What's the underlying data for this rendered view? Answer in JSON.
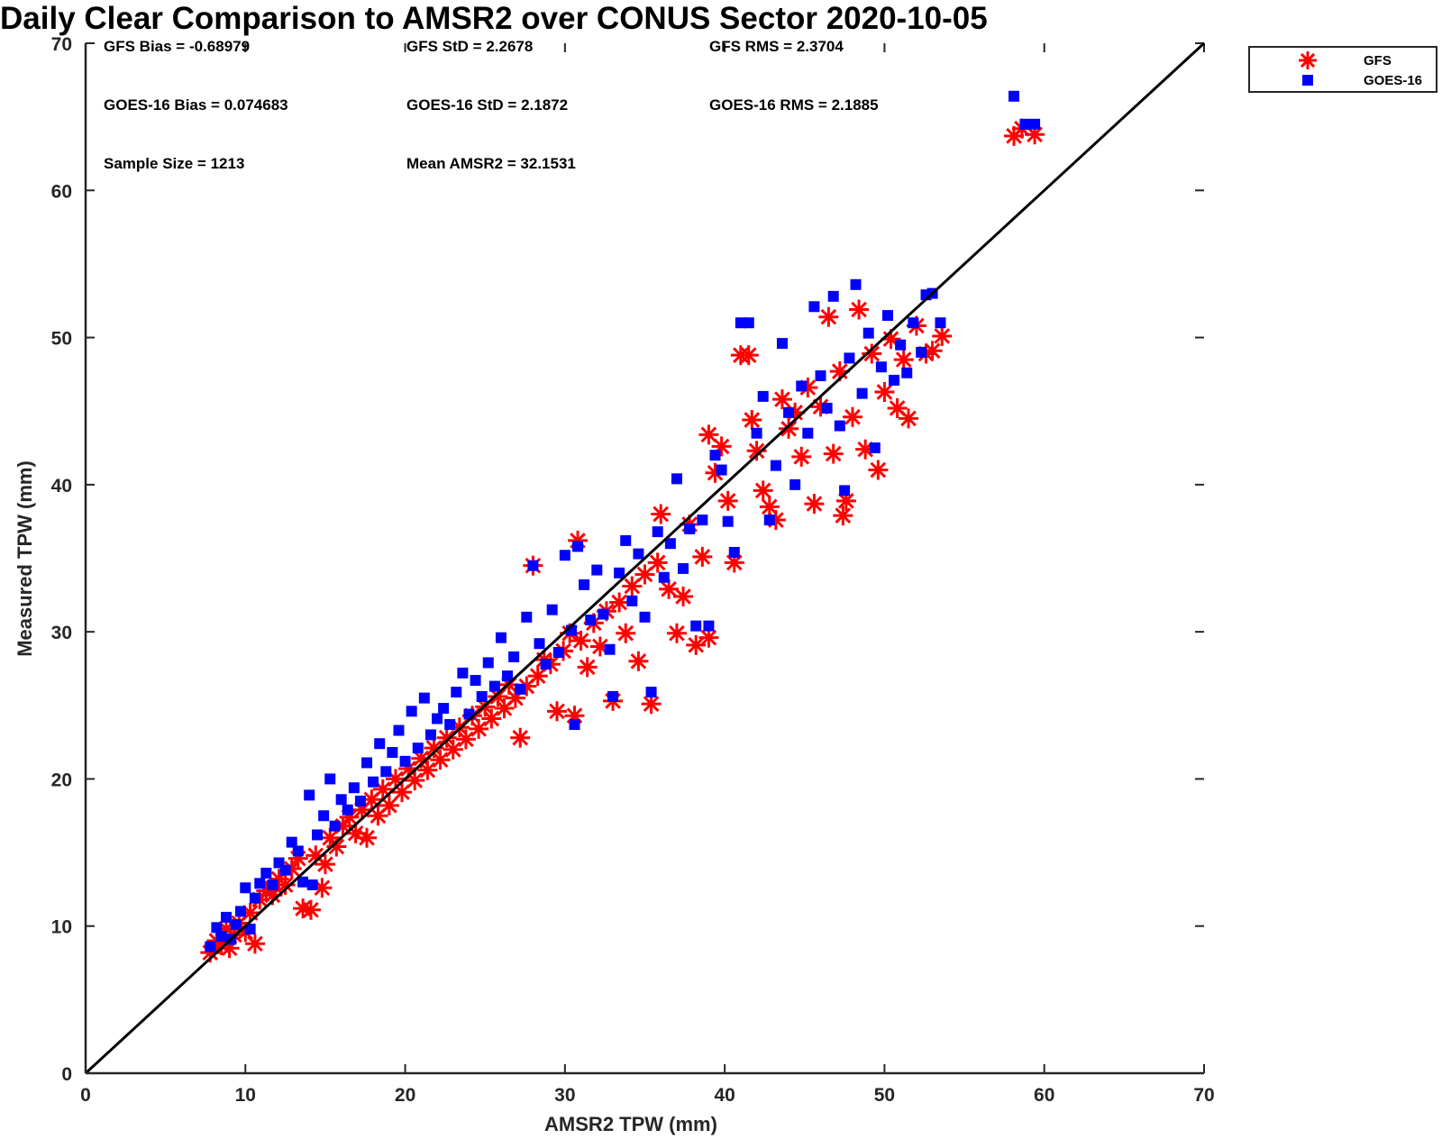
{
  "chart_data": {
    "type": "scatter",
    "title": "Daily Clear Comparison to AMSR2 over CONUS Sector 2020-10-05",
    "xlabel": "AMSR2 TPW (mm)",
    "ylabel": "Measured TPW (mm)",
    "xlim": [
      0,
      70
    ],
    "ylim": [
      0,
      70
    ],
    "xticks": [
      "0",
      "10",
      "20",
      "30",
      "40",
      "50",
      "60",
      "70"
    ],
    "yticks": [
      "0",
      "10",
      "20",
      "30",
      "40",
      "50",
      "60",
      "70"
    ],
    "grid": false,
    "legend_position": "outside-top-right",
    "reference_line": {
      "x": [
        0,
        70
      ],
      "y": [
        0,
        70
      ],
      "color": "#000000"
    },
    "stats": [
      [
        "GFS Bias = -0.68979",
        "GFS StD = 2.2678",
        "GFS RMS = 2.3704"
      ],
      [
        "GOES-16 Bias = 0.074683",
        "GOES-16 StD = 2.1872",
        "GOES-16 RMS = 2.1885"
      ],
      [
        "Sample Size = 1213",
        "Mean AMSR2 = 32.1531",
        ""
      ]
    ],
    "series": [
      {
        "name": "GFS",
        "marker": "asterisk",
        "color": "#ff0000",
        "points": [
          [
            7.8,
            8.2
          ],
          [
            8.2,
            9.0
          ],
          [
            8.5,
            8.7
          ],
          [
            8.8,
            9.8
          ],
          [
            9.0,
            8.5
          ],
          [
            9.3,
            9.4
          ],
          [
            9.6,
            10.2
          ],
          [
            10.0,
            9.6
          ],
          [
            10.3,
            10.9
          ],
          [
            10.6,
            8.8
          ],
          [
            10.9,
            11.8
          ],
          [
            11.3,
            12.4
          ],
          [
            11.7,
            12.1
          ],
          [
            12.1,
            13.2
          ],
          [
            12.5,
            12.8
          ],
          [
            12.9,
            13.9
          ],
          [
            13.3,
            14.6
          ],
          [
            13.6,
            11.2
          ],
          [
            14.1,
            11.1
          ],
          [
            14.4,
            14.8
          ],
          [
            14.8,
            12.6
          ],
          [
            15.0,
            14.2
          ],
          [
            15.3,
            16.0
          ],
          [
            15.7,
            15.4
          ],
          [
            16.1,
            16.8
          ],
          [
            16.5,
            17.4
          ],
          [
            16.9,
            16.3
          ],
          [
            17.3,
            17.9
          ],
          [
            17.6,
            16.0
          ],
          [
            17.9,
            18.6
          ],
          [
            18.3,
            17.5
          ],
          [
            18.6,
            19.3
          ],
          [
            19.0,
            18.2
          ],
          [
            19.4,
            20.0
          ],
          [
            19.8,
            19.1
          ],
          [
            20.2,
            20.7
          ],
          [
            20.6,
            19.9
          ],
          [
            21.0,
            21.4
          ],
          [
            21.4,
            20.6
          ],
          [
            21.8,
            22.1
          ],
          [
            22.2,
            21.3
          ],
          [
            22.6,
            22.8
          ],
          [
            23.0,
            22.0
          ],
          [
            23.4,
            23.5
          ],
          [
            23.8,
            22.7
          ],
          [
            24.2,
            24.3
          ],
          [
            24.6,
            23.4
          ],
          [
            25.0,
            24.9
          ],
          [
            25.4,
            24.1
          ],
          [
            25.8,
            25.6
          ],
          [
            26.2,
            24.8
          ],
          [
            26.5,
            26.4
          ],
          [
            26.9,
            25.5
          ],
          [
            27.2,
            22.8
          ],
          [
            27.6,
            26.3
          ],
          [
            28.0,
            34.5
          ],
          [
            28.3,
            27.0
          ],
          [
            28.7,
            28.1
          ],
          [
            29.1,
            27.8
          ],
          [
            29.5,
            24.6
          ],
          [
            29.9,
            28.7
          ],
          [
            30.3,
            29.9
          ],
          [
            30.6,
            24.3
          ],
          [
            30.8,
            36.2
          ],
          [
            31.0,
            29.4
          ],
          [
            31.4,
            27.6
          ],
          [
            31.8,
            30.6
          ],
          [
            32.2,
            29.0
          ],
          [
            32.6,
            31.4
          ],
          [
            33.0,
            25.3
          ],
          [
            33.4,
            32.0
          ],
          [
            33.8,
            29.9
          ],
          [
            34.2,
            33.1
          ],
          [
            34.6,
            28.0
          ],
          [
            35.0,
            33.9
          ],
          [
            35.4,
            25.1
          ],
          [
            35.8,
            34.7
          ],
          [
            36.0,
            38.0
          ],
          [
            36.5,
            32.9
          ],
          [
            37.0,
            29.9
          ],
          [
            37.4,
            32.4
          ],
          [
            37.8,
            37.3
          ],
          [
            38.2,
            29.1
          ],
          [
            38.6,
            35.1
          ],
          [
            39.0,
            29.6
          ],
          [
            39.0,
            43.4
          ],
          [
            39.4,
            40.8
          ],
          [
            39.8,
            42.6
          ],
          [
            40.2,
            38.9
          ],
          [
            40.6,
            34.7
          ],
          [
            41.0,
            48.8
          ],
          [
            41.5,
            48.8
          ],
          [
            41.7,
            44.4
          ],
          [
            42.0,
            42.3
          ],
          [
            42.4,
            39.6
          ],
          [
            42.8,
            38.5
          ],
          [
            43.2,
            37.6
          ],
          [
            43.6,
            45.8
          ],
          [
            44.0,
            43.8
          ],
          [
            44.4,
            44.9
          ],
          [
            44.8,
            41.9
          ],
          [
            45.2,
            46.6
          ],
          [
            45.6,
            38.7
          ],
          [
            46.0,
            45.3
          ],
          [
            46.5,
            51.4
          ],
          [
            46.8,
            42.1
          ],
          [
            47.2,
            47.7
          ],
          [
            47.4,
            37.9
          ],
          [
            47.6,
            38.9
          ],
          [
            48.0,
            44.6
          ],
          [
            48.4,
            51.9
          ],
          [
            48.8,
            42.4
          ],
          [
            49.2,
            48.9
          ],
          [
            49.6,
            41.0
          ],
          [
            50.0,
            46.3
          ],
          [
            50.4,
            49.9
          ],
          [
            50.8,
            45.2
          ],
          [
            51.2,
            48.5
          ],
          [
            51.5,
            44.5
          ],
          [
            52.0,
            50.8
          ],
          [
            52.6,
            48.9
          ],
          [
            53.0,
            49.1
          ],
          [
            53.6,
            50.1
          ],
          [
            58.1,
            63.7
          ],
          [
            58.6,
            64.2
          ],
          [
            59.4,
            63.8
          ]
        ]
      },
      {
        "name": "GOES-16",
        "marker": "square",
        "color": "#0000ff",
        "points": [
          [
            7.8,
            8.6
          ],
          [
            8.2,
            9.9
          ],
          [
            8.5,
            9.3
          ],
          [
            8.8,
            10.6
          ],
          [
            9.1,
            9.1
          ],
          [
            9.4,
            10.1
          ],
          [
            9.7,
            11.0
          ],
          [
            10.0,
            12.6
          ],
          [
            10.3,
            9.8
          ],
          [
            10.6,
            11.9
          ],
          [
            10.9,
            12.9
          ],
          [
            11.3,
            13.6
          ],
          [
            11.7,
            12.8
          ],
          [
            12.1,
            14.3
          ],
          [
            12.5,
            13.8
          ],
          [
            12.9,
            15.7
          ],
          [
            13.3,
            15.1
          ],
          [
            13.6,
            13.0
          ],
          [
            14.0,
            18.9
          ],
          [
            14.2,
            12.8
          ],
          [
            14.5,
            16.2
          ],
          [
            14.9,
            17.5
          ],
          [
            15.3,
            20.0
          ],
          [
            15.6,
            16.8
          ],
          [
            16.0,
            18.6
          ],
          [
            16.4,
            17.9
          ],
          [
            16.8,
            19.4
          ],
          [
            17.2,
            18.5
          ],
          [
            17.6,
            21.1
          ],
          [
            18.0,
            19.8
          ],
          [
            18.4,
            22.4
          ],
          [
            18.8,
            20.5
          ],
          [
            19.2,
            21.8
          ],
          [
            19.6,
            23.3
          ],
          [
            20.0,
            21.2
          ],
          [
            20.4,
            24.6
          ],
          [
            20.8,
            22.1
          ],
          [
            21.2,
            25.5
          ],
          [
            21.6,
            23.0
          ],
          [
            22.0,
            24.1
          ],
          [
            22.4,
            24.8
          ],
          [
            22.8,
            23.7
          ],
          [
            23.2,
            25.9
          ],
          [
            23.6,
            27.2
          ],
          [
            24.0,
            24.4
          ],
          [
            24.4,
            26.7
          ],
          [
            24.8,
            25.6
          ],
          [
            25.2,
            27.9
          ],
          [
            25.6,
            26.3
          ],
          [
            26.0,
            29.6
          ],
          [
            26.4,
            27.0
          ],
          [
            26.8,
            28.3
          ],
          [
            27.2,
            26.1
          ],
          [
            27.6,
            31.0
          ],
          [
            28.0,
            34.5
          ],
          [
            28.4,
            29.2
          ],
          [
            28.8,
            27.8
          ],
          [
            29.2,
            31.5
          ],
          [
            29.6,
            28.6
          ],
          [
            30.0,
            35.2
          ],
          [
            30.4,
            30.1
          ],
          [
            30.6,
            23.7
          ],
          [
            30.8,
            35.8
          ],
          [
            31.2,
            33.2
          ],
          [
            31.6,
            30.8
          ],
          [
            32.0,
            34.2
          ],
          [
            32.4,
            31.2
          ],
          [
            32.8,
            28.8
          ],
          [
            33.0,
            25.6
          ],
          [
            33.4,
            34.0
          ],
          [
            33.8,
            36.2
          ],
          [
            34.2,
            32.1
          ],
          [
            34.6,
            35.3
          ],
          [
            35.0,
            31.0
          ],
          [
            35.4,
            25.9
          ],
          [
            35.8,
            36.8
          ],
          [
            36.2,
            33.7
          ],
          [
            36.6,
            36.0
          ],
          [
            37.0,
            40.4
          ],
          [
            37.4,
            34.3
          ],
          [
            37.8,
            37.0
          ],
          [
            38.2,
            30.4
          ],
          [
            38.6,
            37.6
          ],
          [
            39.0,
            30.4
          ],
          [
            39.4,
            42.0
          ],
          [
            39.8,
            41.0
          ],
          [
            40.2,
            37.5
          ],
          [
            40.6,
            35.4
          ],
          [
            41.0,
            51.0
          ],
          [
            41.5,
            51.0
          ],
          [
            42.0,
            43.5
          ],
          [
            42.4,
            46.0
          ],
          [
            42.8,
            37.6
          ],
          [
            43.2,
            41.3
          ],
          [
            43.6,
            49.6
          ],
          [
            44.0,
            44.9
          ],
          [
            44.4,
            40.0
          ],
          [
            44.8,
            46.7
          ],
          [
            45.2,
            43.5
          ],
          [
            45.6,
            52.1
          ],
          [
            46.0,
            47.4
          ],
          [
            46.4,
            45.2
          ],
          [
            46.8,
            52.8
          ],
          [
            47.2,
            44.0
          ],
          [
            47.5,
            39.6
          ],
          [
            47.8,
            48.6
          ],
          [
            48.2,
            53.6
          ],
          [
            48.6,
            46.2
          ],
          [
            49.0,
            50.3
          ],
          [
            49.4,
            42.5
          ],
          [
            49.8,
            48.0
          ],
          [
            50.2,
            51.5
          ],
          [
            50.6,
            47.1
          ],
          [
            51.0,
            49.5
          ],
          [
            51.4,
            47.6
          ],
          [
            51.8,
            51.0
          ],
          [
            52.3,
            49.0
          ],
          [
            52.6,
            52.9
          ],
          [
            53.0,
            53.0
          ],
          [
            53.5,
            51.0
          ],
          [
            58.1,
            66.4
          ],
          [
            58.8,
            64.5
          ],
          [
            59.4,
            64.5
          ]
        ]
      }
    ]
  }
}
